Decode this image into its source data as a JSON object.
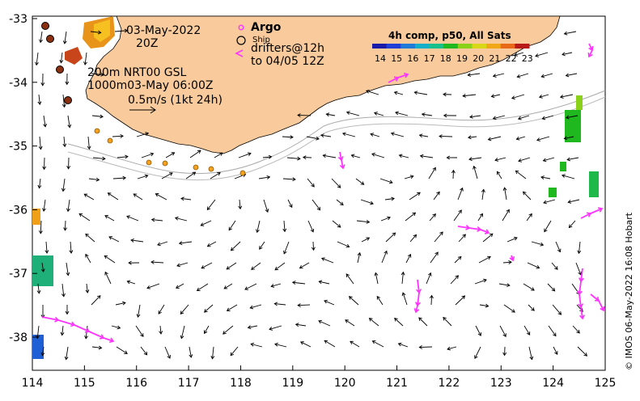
{
  "map": {
    "date": "03-May-2022",
    "time": "20Z",
    "depth_line1": "200m  NRT00 GSL",
    "depth_line2": "1000m03-May 06:00Z",
    "scale_label": "0.5m/s (1kt 24h)",
    "x_ticks": [
      "114",
      "115",
      "116",
      "117",
      "118",
      "119",
      "120",
      "121",
      "122",
      "123",
      "124",
      "125"
    ],
    "y_ticks": [
      "-33",
      "-34",
      "-35",
      "-36",
      "-37",
      "-38"
    ],
    "credit": "© IMOS 06-May-2022 16:08 Hobart",
    "land_color": "#f9cb9c",
    "drifter_color": "#ff33ff"
  },
  "legend": {
    "argo_label": "Argo",
    "ship_label": "Ship",
    "drifters_line1": "drifters@12h",
    "drifters_line2": "to 04/05 12Z"
  },
  "colorbar": {
    "title": "4h comp, p50, All Sats",
    "ticks": [
      "14",
      "15",
      "16",
      "17",
      "18",
      "19",
      "20",
      "21",
      "22",
      "23"
    ],
    "colors": [
      "#1a1aa8",
      "#1f3fd6",
      "#1f7ad8",
      "#11b0c8",
      "#16c08a",
      "#1fb81f",
      "#8ad21a",
      "#d8d818",
      "#f0a818",
      "#e86a18",
      "#b81a1a"
    ]
  }
}
